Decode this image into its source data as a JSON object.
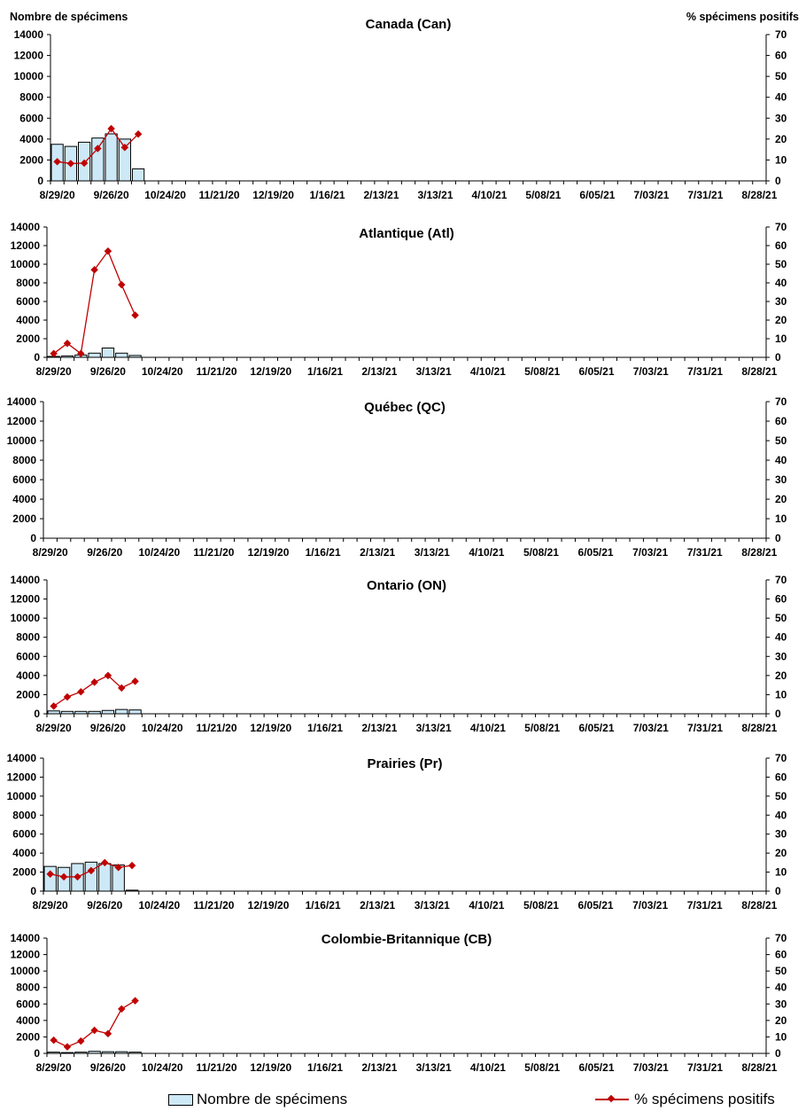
{
  "left_axis_title": "Nombre de spécimens",
  "right_axis_title": "% spécimens positifs",
  "legend": {
    "bars_label": "Nombre de spécimens",
    "line_label": "% spécimens positifs"
  },
  "colors": {
    "bar_fill": "#cde9f7",
    "bar_stroke": "#000000",
    "line": "#c00000"
  },
  "chart_data": [
    {
      "type": "bar",
      "title": "Canada (Can)",
      "x_tick_labels": [
        "8/29/20",
        "9/26/20",
        "10/24/20",
        "11/21/20",
        "12/19/20",
        "1/16/21",
        "2/13/21",
        "3/13/21",
        "4/10/21",
        "5/08/21",
        "6/05/21",
        "7/03/21",
        "7/31/21",
        "8/28/21"
      ],
      "yticks_left": [
        0,
        2000,
        4000,
        6000,
        8000,
        10000,
        12000,
        14000
      ],
      "yticks_right": [
        0,
        10,
        20,
        30,
        40,
        50,
        60,
        70
      ],
      "ylim_left": [
        0,
        14000
      ],
      "ylim_right": [
        0,
        70
      ],
      "num_weeks": 53,
      "series": [
        {
          "name": "Nombre de spécimens",
          "type": "bar",
          "values": [
            3500,
            3300,
            3700,
            4100,
            4500,
            4000,
            1150
          ]
        },
        {
          "name": "% spécimens positifs",
          "type": "line",
          "values": [
            9.2,
            8.3,
            8.5,
            15.5,
            25,
            16,
            22.4
          ]
        }
      ]
    },
    {
      "type": "bar",
      "title": "Atlantique (Atl)",
      "x_tick_labels": [
        "8/29/20",
        "9/26/20",
        "10/24/20",
        "11/21/20",
        "12/19/20",
        "1/16/21",
        "2/13/21",
        "3/13/21",
        "4/10/21",
        "5/08/21",
        "6/05/21",
        "7/03/21",
        "7/31/21",
        "8/28/21"
      ],
      "yticks_left": [
        0,
        2000,
        4000,
        6000,
        8000,
        10000,
        12000,
        14000
      ],
      "yticks_right": [
        0,
        10,
        20,
        30,
        40,
        50,
        60,
        70
      ],
      "ylim_left": [
        0,
        14000
      ],
      "ylim_right": [
        0,
        70
      ],
      "num_weeks": 53,
      "series": [
        {
          "name": "Nombre de spécimens",
          "type": "bar",
          "values": [
            100,
            150,
            250,
            450,
            1000,
            450,
            200
          ]
        },
        {
          "name": "% spécimens positifs",
          "type": "line",
          "values": [
            2,
            7.5,
            2,
            47,
            57,
            39,
            22.6
          ]
        }
      ]
    },
    {
      "type": "bar",
      "title": "Québec (QC)",
      "x_tick_labels": [
        "8/29/20",
        "9/26/20",
        "10/24/20",
        "11/21/20",
        "12/19/20",
        "1/16/21",
        "2/13/21",
        "3/13/21",
        "4/10/21",
        "5/08/21",
        "6/05/21",
        "7/03/21",
        "7/31/21",
        "8/28/21"
      ],
      "yticks_left": [
        0,
        2000,
        4000,
        6000,
        8000,
        10000,
        12000,
        14000
      ],
      "yticks_right": [
        0,
        10,
        20,
        30,
        40,
        50,
        60,
        70
      ],
      "ylim_left": [
        0,
        14000
      ],
      "ylim_right": [
        0,
        70
      ],
      "num_weeks": 53,
      "series": [
        {
          "name": "Nombre de spécimens",
          "type": "bar",
          "values": []
        },
        {
          "name": "% spécimens positifs",
          "type": "line",
          "values": []
        }
      ]
    },
    {
      "type": "bar",
      "title": "Ontario (ON)",
      "x_tick_labels": [
        "8/29/20",
        "9/26/20",
        "10/24/20",
        "11/21/20",
        "12/19/20",
        "1/16/21",
        "2/13/21",
        "3/13/21",
        "4/10/21",
        "5/08/21",
        "6/05/21",
        "7/03/21",
        "7/31/21",
        "8/28/21"
      ],
      "yticks_left": [
        0,
        2000,
        4000,
        6000,
        8000,
        10000,
        12000,
        14000
      ],
      "yticks_right": [
        0,
        10,
        20,
        30,
        40,
        50,
        60,
        70
      ],
      "ylim_left": [
        0,
        14000
      ],
      "ylim_right": [
        0,
        70
      ],
      "num_weeks": 53,
      "series": [
        {
          "name": "Nombre de spécimens",
          "type": "bar",
          "values": [
            300,
            250,
            250,
            250,
            350,
            450,
            400
          ]
        },
        {
          "name": "% spécimens positifs",
          "type": "line",
          "values": [
            4,
            8.8,
            11.5,
            16.5,
            20,
            13.5,
            17
          ]
        }
      ]
    },
    {
      "type": "bar",
      "title": "Prairies (Pr)",
      "x_tick_labels": [
        "8/29/20",
        "9/26/20",
        "10/24/20",
        "11/21/20",
        "12/19/20",
        "1/16/21",
        "2/13/21",
        "3/13/21",
        "4/10/21",
        "5/08/21",
        "6/05/21",
        "7/03/21",
        "7/31/21",
        "8/28/21"
      ],
      "yticks_left": [
        0,
        2000,
        4000,
        6000,
        8000,
        10000,
        12000,
        14000
      ],
      "yticks_right": [
        0,
        10,
        20,
        30,
        40,
        50,
        60,
        70
      ],
      "ylim_left": [
        0,
        14000
      ],
      "ylim_right": [
        0,
        70
      ],
      "num_weeks": 53,
      "series": [
        {
          "name": "Nombre de spécimens",
          "type": "bar",
          "values": [
            2600,
            2500,
            2900,
            3050,
            2900,
            2750,
            100
          ]
        },
        {
          "name": "% spécimens positifs",
          "type": "line",
          "values": [
            9,
            7.5,
            7.5,
            10.8,
            15,
            12.5,
            13.5
          ]
        }
      ]
    },
    {
      "type": "bar",
      "title": "Colombie-Britannique (CB)",
      "x_tick_labels": [
        "8/29/20",
        "9/26/20",
        "10/24/20",
        "11/21/20",
        "12/19/20",
        "1/16/21",
        "2/13/21",
        "3/13/21",
        "4/10/21",
        "5/08/21",
        "6/05/21",
        "7/03/21",
        "7/31/21",
        "8/28/21"
      ],
      "yticks_left": [
        0,
        2000,
        4000,
        6000,
        8000,
        10000,
        12000,
        14000
      ],
      "yticks_right": [
        0,
        10,
        20,
        30,
        40,
        50,
        60,
        70
      ],
      "ylim_left": [
        0,
        14000
      ],
      "ylim_right": [
        0,
        70
      ],
      "num_weeks": 53,
      "series": [
        {
          "name": "Nombre de spécimens",
          "type": "bar",
          "values": [
            150,
            100,
            150,
            250,
            200,
            200,
            150
          ]
        },
        {
          "name": "% spécimens positifs",
          "type": "line",
          "values": [
            8,
            4,
            7.5,
            14,
            12,
            27,
            32
          ]
        }
      ]
    }
  ]
}
